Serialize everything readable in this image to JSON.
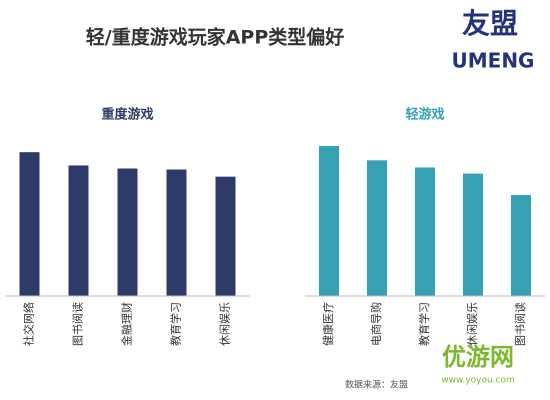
{
  "title": "轻/重度游戏玩家APP类型偏好",
  "logo": {
    "cn": "友盟",
    "en": "UMENG"
  },
  "source": "数据来源：友盟",
  "watermark": {
    "name": "优游网",
    "url": "www.yoyou.com"
  },
  "chart_data": [
    {
      "type": "bar",
      "title": "重度游戏",
      "categories": [
        "社交网络",
        "图书阅读",
        "金融理财",
        "教育学习",
        "休闲娱乐"
      ],
      "values": [
        141,
        128,
        125,
        124,
        117
      ],
      "color": "#2e3b69",
      "ylim": [
        0,
        150
      ]
    },
    {
      "type": "bar",
      "title": "轻游戏",
      "categories": [
        "健康医疗",
        "电商导购",
        "教育学习",
        "休闲娱乐",
        "图书阅读"
      ],
      "values": [
        147,
        133,
        126,
        120,
        99
      ],
      "color": "#35a1b2",
      "ylim": [
        0,
        150
      ]
    }
  ]
}
